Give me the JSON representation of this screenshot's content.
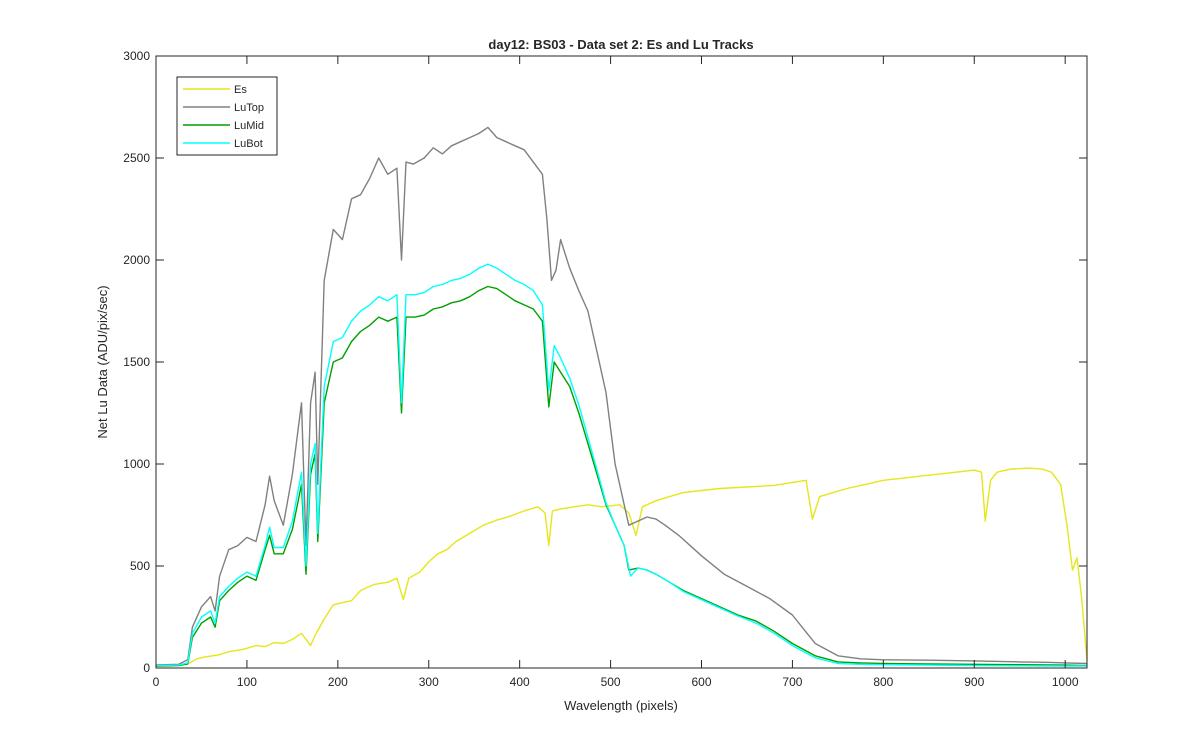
{
  "chart_data": {
    "type": "line",
    "title": "day12: BS03 - Data set 2: Es and Lu Tracks",
    "xlabel": "Wavelength (pixels)",
    "ylabel": "Net Lu Data (ADU/pix/sec)",
    "xlim": [
      0,
      1024
    ],
    "ylim": [
      0,
      3000
    ],
    "xticks": [
      0,
      100,
      200,
      300,
      400,
      500,
      600,
      700,
      800,
      900,
      1000
    ],
    "yticks": [
      0,
      500,
      1000,
      1500,
      2000,
      2500,
      3000
    ],
    "legend_position": "top-left",
    "series": [
      {
        "name": "Es",
        "color": "#e6e619",
        "points": [
          [
            0,
            10
          ],
          [
            20,
            12
          ],
          [
            35,
            20
          ],
          [
            45,
            45
          ],
          [
            55,
            55
          ],
          [
            70,
            65
          ],
          [
            80,
            80
          ],
          [
            95,
            90
          ],
          [
            110,
            110
          ],
          [
            120,
            105
          ],
          [
            130,
            125
          ],
          [
            140,
            120
          ],
          [
            150,
            140
          ],
          [
            160,
            170
          ],
          [
            170,
            110
          ],
          [
            175,
            160
          ],
          [
            185,
            240
          ],
          [
            195,
            310
          ],
          [
            205,
            320
          ],
          [
            215,
            330
          ],
          [
            225,
            380
          ],
          [
            240,
            410
          ],
          [
            255,
            420
          ],
          [
            265,
            440
          ],
          [
            272,
            335
          ],
          [
            278,
            440
          ],
          [
            290,
            470
          ],
          [
            300,
            520
          ],
          [
            310,
            560
          ],
          [
            320,
            580
          ],
          [
            330,
            620
          ],
          [
            345,
            660
          ],
          [
            360,
            700
          ],
          [
            375,
            725
          ],
          [
            390,
            745
          ],
          [
            405,
            770
          ],
          [
            420,
            790
          ],
          [
            428,
            760
          ],
          [
            432,
            600
          ],
          [
            436,
            770
          ],
          [
            445,
            780
          ],
          [
            460,
            790
          ],
          [
            475,
            800
          ],
          [
            490,
            790
          ],
          [
            500,
            795
          ],
          [
            510,
            800
          ],
          [
            520,
            760
          ],
          [
            528,
            650
          ],
          [
            535,
            790
          ],
          [
            550,
            820
          ],
          [
            565,
            840
          ],
          [
            580,
            860
          ],
          [
            600,
            870
          ],
          [
            620,
            880
          ],
          [
            640,
            885
          ],
          [
            660,
            890
          ],
          [
            680,
            895
          ],
          [
            700,
            910
          ],
          [
            715,
            920
          ],
          [
            722,
            730
          ],
          [
            730,
            840
          ],
          [
            745,
            860
          ],
          [
            760,
            880
          ],
          [
            780,
            900
          ],
          [
            800,
            920
          ],
          [
            820,
            930
          ],
          [
            840,
            940
          ],
          [
            860,
            950
          ],
          [
            880,
            960
          ],
          [
            900,
            970
          ],
          [
            908,
            960
          ],
          [
            912,
            720
          ],
          [
            918,
            920
          ],
          [
            925,
            960
          ],
          [
            940,
            975
          ],
          [
            960,
            980
          ],
          [
            975,
            975
          ],
          [
            985,
            960
          ],
          [
            995,
            900
          ],
          [
            1002,
            700
          ],
          [
            1008,
            480
          ],
          [
            1013,
            540
          ],
          [
            1018,
            350
          ],
          [
            1024,
            40
          ]
        ]
      },
      {
        "name": "LuTop",
        "color": "#808080",
        "points": [
          [
            0,
            15
          ],
          [
            25,
            18
          ],
          [
            35,
            40
          ],
          [
            40,
            200
          ],
          [
            50,
            300
          ],
          [
            60,
            350
          ],
          [
            65,
            280
          ],
          [
            70,
            450
          ],
          [
            80,
            580
          ],
          [
            90,
            600
          ],
          [
            100,
            640
          ],
          [
            110,
            620
          ],
          [
            120,
            800
          ],
          [
            125,
            940
          ],
          [
            130,
            820
          ],
          [
            140,
            700
          ],
          [
            150,
            950
          ],
          [
            160,
            1300
          ],
          [
            165,
            600
          ],
          [
            170,
            1300
          ],
          [
            175,
            1450
          ],
          [
            178,
            900
          ],
          [
            185,
            1900
          ],
          [
            195,
            2150
          ],
          [
            205,
            2100
          ],
          [
            215,
            2300
          ],
          [
            225,
            2320
          ],
          [
            235,
            2400
          ],
          [
            245,
            2500
          ],
          [
            255,
            2420
          ],
          [
            265,
            2450
          ],
          [
            270,
            2000
          ],
          [
            275,
            2480
          ],
          [
            283,
            2470
          ],
          [
            295,
            2500
          ],
          [
            305,
            2550
          ],
          [
            315,
            2520
          ],
          [
            325,
            2560
          ],
          [
            335,
            2580
          ],
          [
            345,
            2600
          ],
          [
            355,
            2620
          ],
          [
            365,
            2650
          ],
          [
            375,
            2600
          ],
          [
            385,
            2580
          ],
          [
            395,
            2560
          ],
          [
            405,
            2540
          ],
          [
            415,
            2480
          ],
          [
            425,
            2420
          ],
          [
            430,
            2200
          ],
          [
            435,
            1900
          ],
          [
            440,
            1950
          ],
          [
            445,
            2100
          ],
          [
            455,
            1960
          ],
          [
            465,
            1850
          ],
          [
            475,
            1750
          ],
          [
            485,
            1550
          ],
          [
            495,
            1350
          ],
          [
            505,
            1000
          ],
          [
            515,
            800
          ],
          [
            520,
            700
          ],
          [
            530,
            720
          ],
          [
            540,
            740
          ],
          [
            550,
            730
          ],
          [
            560,
            700
          ],
          [
            575,
            650
          ],
          [
            600,
            550
          ],
          [
            625,
            460
          ],
          [
            650,
            400
          ],
          [
            675,
            340
          ],
          [
            700,
            260
          ],
          [
            725,
            120
          ],
          [
            750,
            60
          ],
          [
            775,
            45
          ],
          [
            800,
            40
          ],
          [
            850,
            38
          ],
          [
            900,
            35
          ],
          [
            950,
            30
          ],
          [
            980,
            28
          ],
          [
            1000,
            25
          ],
          [
            1024,
            22
          ]
        ]
      },
      {
        "name": "LuMid",
        "color": "#00a000",
        "points": [
          [
            0,
            10
          ],
          [
            25,
            12
          ],
          [
            35,
            20
          ],
          [
            40,
            150
          ],
          [
            50,
            220
          ],
          [
            60,
            250
          ],
          [
            65,
            200
          ],
          [
            70,
            330
          ],
          [
            80,
            380
          ],
          [
            90,
            420
          ],
          [
            100,
            450
          ],
          [
            110,
            430
          ],
          [
            120,
            580
          ],
          [
            125,
            650
          ],
          [
            130,
            560
          ],
          [
            140,
            560
          ],
          [
            150,
            680
          ],
          [
            160,
            900
          ],
          [
            165,
            460
          ],
          [
            170,
            950
          ],
          [
            175,
            1050
          ],
          [
            178,
            620
          ],
          [
            185,
            1300
          ],
          [
            195,
            1500
          ],
          [
            205,
            1520
          ],
          [
            215,
            1600
          ],
          [
            225,
            1650
          ],
          [
            235,
            1680
          ],
          [
            245,
            1720
          ],
          [
            255,
            1700
          ],
          [
            265,
            1720
          ],
          [
            270,
            1250
          ],
          [
            275,
            1720
          ],
          [
            285,
            1720
          ],
          [
            295,
            1730
          ],
          [
            305,
            1760
          ],
          [
            315,
            1770
          ],
          [
            325,
            1790
          ],
          [
            335,
            1800
          ],
          [
            345,
            1820
          ],
          [
            355,
            1850
          ],
          [
            365,
            1870
          ],
          [
            375,
            1860
          ],
          [
            385,
            1830
          ],
          [
            395,
            1800
          ],
          [
            405,
            1780
          ],
          [
            415,
            1760
          ],
          [
            425,
            1700
          ],
          [
            432,
            1280
          ],
          [
            438,
            1500
          ],
          [
            445,
            1450
          ],
          [
            455,
            1380
          ],
          [
            465,
            1250
          ],
          [
            475,
            1100
          ],
          [
            485,
            950
          ],
          [
            495,
            800
          ],
          [
            505,
            700
          ],
          [
            515,
            600
          ],
          [
            520,
            480
          ],
          [
            530,
            490
          ],
          [
            540,
            480
          ],
          [
            550,
            460
          ],
          [
            565,
            420
          ],
          [
            580,
            380
          ],
          [
            600,
            340
          ],
          [
            620,
            300
          ],
          [
            640,
            260
          ],
          [
            660,
            230
          ],
          [
            680,
            180
          ],
          [
            700,
            120
          ],
          [
            725,
            60
          ],
          [
            750,
            30
          ],
          [
            775,
            25
          ],
          [
            800,
            22
          ],
          [
            850,
            20
          ],
          [
            900,
            18
          ],
          [
            950,
            16
          ],
          [
            1000,
            14
          ],
          [
            1024,
            12
          ]
        ]
      },
      {
        "name": "LuBot",
        "color": "#00ffff",
        "points": [
          [
            0,
            12
          ],
          [
            25,
            14
          ],
          [
            35,
            25
          ],
          [
            40,
            170
          ],
          [
            50,
            250
          ],
          [
            60,
            280
          ],
          [
            65,
            220
          ],
          [
            70,
            350
          ],
          [
            80,
            400
          ],
          [
            90,
            440
          ],
          [
            100,
            470
          ],
          [
            110,
            450
          ],
          [
            120,
            600
          ],
          [
            125,
            690
          ],
          [
            130,
            590
          ],
          [
            140,
            590
          ],
          [
            150,
            720
          ],
          [
            160,
            960
          ],
          [
            165,
            500
          ],
          [
            170,
            1000
          ],
          [
            175,
            1100
          ],
          [
            178,
            660
          ],
          [
            185,
            1380
          ],
          [
            195,
            1600
          ],
          [
            205,
            1620
          ],
          [
            215,
            1700
          ],
          [
            225,
            1750
          ],
          [
            235,
            1780
          ],
          [
            245,
            1820
          ],
          [
            255,
            1800
          ],
          [
            265,
            1830
          ],
          [
            270,
            1300
          ],
          [
            275,
            1830
          ],
          [
            285,
            1830
          ],
          [
            295,
            1840
          ],
          [
            305,
            1870
          ],
          [
            315,
            1880
          ],
          [
            325,
            1900
          ],
          [
            335,
            1910
          ],
          [
            345,
            1930
          ],
          [
            355,
            1960
          ],
          [
            365,
            1980
          ],
          [
            375,
            1960
          ],
          [
            385,
            1930
          ],
          [
            395,
            1900
          ],
          [
            405,
            1880
          ],
          [
            415,
            1850
          ],
          [
            425,
            1780
          ],
          [
            432,
            1360
          ],
          [
            438,
            1580
          ],
          [
            445,
            1520
          ],
          [
            455,
            1420
          ],
          [
            465,
            1290
          ],
          [
            475,
            1130
          ],
          [
            485,
            970
          ],
          [
            495,
            810
          ],
          [
            505,
            700
          ],
          [
            515,
            600
          ],
          [
            522,
            450
          ],
          [
            530,
            490
          ],
          [
            540,
            480
          ],
          [
            550,
            460
          ],
          [
            565,
            420
          ],
          [
            580,
            375
          ],
          [
            600,
            335
          ],
          [
            620,
            295
          ],
          [
            640,
            255
          ],
          [
            660,
            220
          ],
          [
            680,
            170
          ],
          [
            700,
            110
          ],
          [
            725,
            50
          ],
          [
            750,
            22
          ],
          [
            775,
            18
          ],
          [
            800,
            16
          ],
          [
            850,
            14
          ],
          [
            900,
            12
          ],
          [
            950,
            11
          ],
          [
            1000,
            10
          ],
          [
            1024,
            10
          ]
        ]
      }
    ]
  }
}
